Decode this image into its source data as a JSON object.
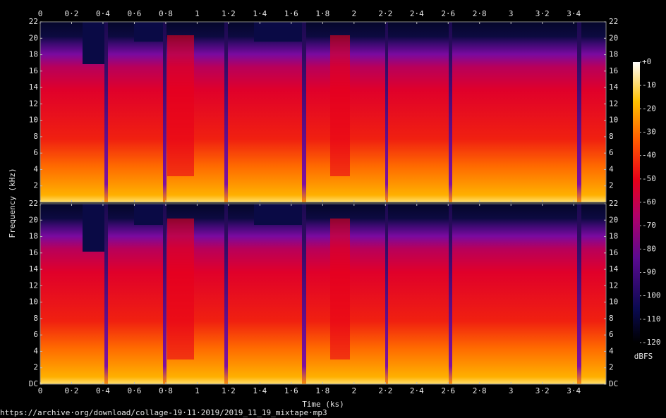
{
  "chart_data": {
    "type": "spectrogram",
    "xlabel": "Time (ks)",
    "ylabel": "Frequency (kHz)",
    "xlim": [
      0,
      3.606
    ],
    "xticks": [
      0,
      {
        "value": 0.2,
        "label": "0·2"
      },
      {
        "value": 0.4,
        "label": "0·4"
      },
      {
        "value": 0.6,
        "label": "0·6"
      },
      {
        "value": 0.8,
        "label": "0·8"
      },
      1,
      {
        "value": 1.2,
        "label": "1·2"
      },
      {
        "value": 1.4,
        "label": "1·4"
      },
      {
        "value": 1.6,
        "label": "1·6"
      },
      {
        "value": 1.8,
        "label": "1·8"
      },
      2,
      {
        "value": 2.2,
        "label": "2·2"
      },
      {
        "value": 2.4,
        "label": "2·4"
      },
      {
        "value": 2.6,
        "label": "2·6"
      },
      {
        "value": 2.8,
        "label": "2·8"
      },
      3,
      {
        "value": 3.2,
        "label": "3·2"
      },
      {
        "value": 3.4,
        "label": "3·4"
      }
    ],
    "channels": [
      {
        "ylim": [
          0,
          22
        ],
        "yticks": [
          2,
          4,
          6,
          8,
          10,
          12,
          14,
          16,
          18,
          20,
          22
        ]
      },
      {
        "ylim": [
          0,
          22
        ],
        "yticks": [
          {
            "value": 0,
            "label": "DC"
          },
          2,
          4,
          6,
          8,
          10,
          12,
          14,
          16,
          18,
          20,
          22
        ]
      }
    ],
    "colorbar": {
      "label": "dBFS",
      "lim": [
        -120,
        0
      ],
      "ticks": [
        -120,
        -110,
        -100,
        -90,
        -80,
        -70,
        -60,
        -50,
        -40,
        -30,
        -20,
        -10,
        {
          "value": 0,
          "label": "+0"
        }
      ]
    }
  },
  "footer": "https://archive·org/download/collage-19·11·2019/2019_11_19_mixtape·mp3"
}
